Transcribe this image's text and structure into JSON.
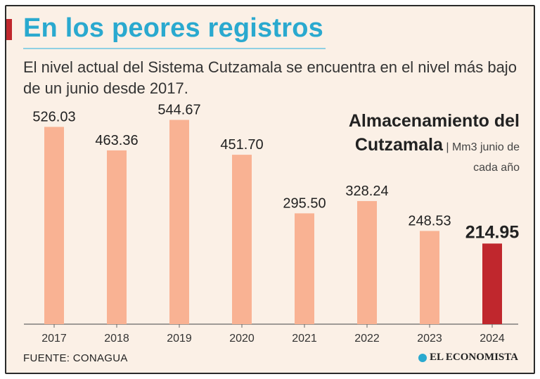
{
  "header": {
    "title": "En los peores registros",
    "subtitle": "El nivel actual del Sistema Cutzamala se encuentra en el nivel más bajo de un junio desde 2017."
  },
  "chart_data": {
    "type": "bar",
    "title_line1": "Almacenamiento del",
    "title_line2": "Cutzamala",
    "unit_line1": "| Mm3 junio de",
    "unit_line2": "cada año",
    "categories": [
      "2017",
      "2018",
      "2019",
      "2020",
      "2021",
      "2022",
      "2023",
      "2024"
    ],
    "values": [
      526.03,
      463.36,
      544.67,
      451.7,
      295.5,
      328.24,
      248.53,
      214.95
    ],
    "labels": [
      "526.03",
      "463.36",
      "544.67",
      "451.70",
      "295.50",
      "328.24",
      "248.53",
      "214.95"
    ],
    "highlight_index": 7,
    "ylim": [
      0,
      600
    ],
    "grid": false,
    "colors": {
      "bar": "#f9b293",
      "highlight": "#c0272d",
      "axis": "#666666"
    }
  },
  "footer": {
    "source": "FUENTE: CONAGUA",
    "brand": "EL ECONOMISTA"
  }
}
